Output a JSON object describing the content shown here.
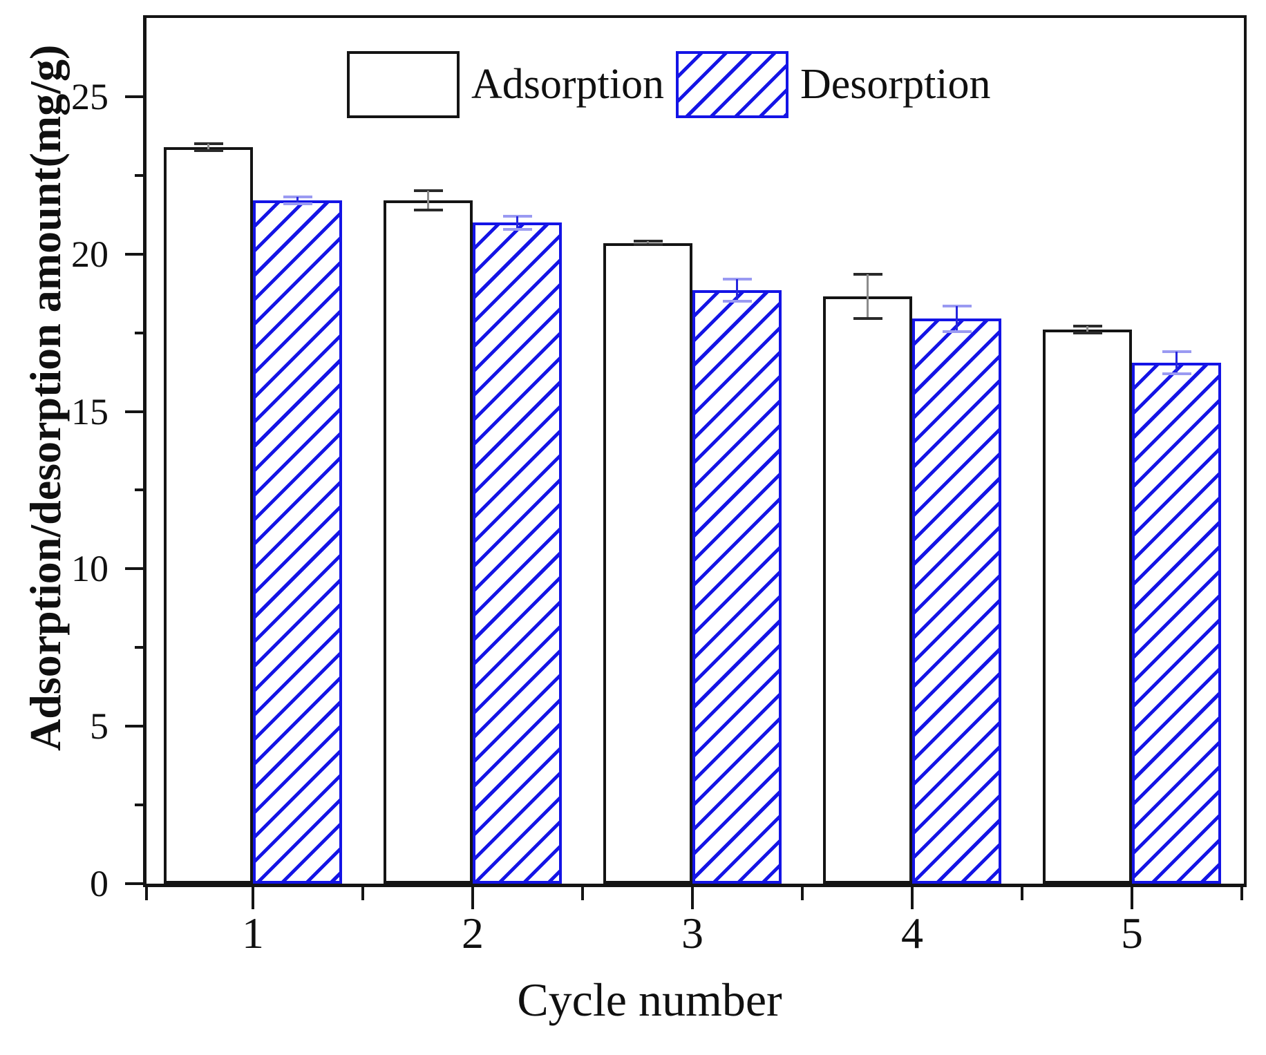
{
  "chart_data": {
    "type": "bar",
    "title": "",
    "xlabel": "Cycle number",
    "ylabel": "Adsorption/desorption amount(mg/g)",
    "categories": [
      "1",
      "2",
      "3",
      "4",
      "5"
    ],
    "series": [
      {
        "name": "Adsorption",
        "style": "open-white-black-border",
        "values": [
          23.4,
          21.7,
          20.35,
          18.65,
          17.6
        ],
        "errors": [
          0.15,
          0.35,
          0.1,
          0.75,
          0.15
        ]
      },
      {
        "name": "Desorption",
        "style": "blue-diagonal-hatch",
        "values": [
          21.7,
          21.0,
          18.85,
          17.95,
          16.55
        ],
        "errors": [
          0.15,
          0.25,
          0.4,
          0.45,
          0.4
        ]
      }
    ],
    "ylim": [
      0,
      27.5
    ],
    "yticks": [
      0,
      5,
      10,
      15,
      20,
      25
    ],
    "y_minor_step": 2.5,
    "grid": false,
    "legend_position": "top-inside",
    "hatch_direction": "forward-slash"
  },
  "colors": {
    "black": "#141414",
    "blue": "#1414e6",
    "blue_error_line": "#2525dd",
    "blue_error_cap": "#9a9af2",
    "gray_error_line": "#8c8c8c",
    "gray_error_cap": "#2a2a2a",
    "background": "#ffffff"
  }
}
